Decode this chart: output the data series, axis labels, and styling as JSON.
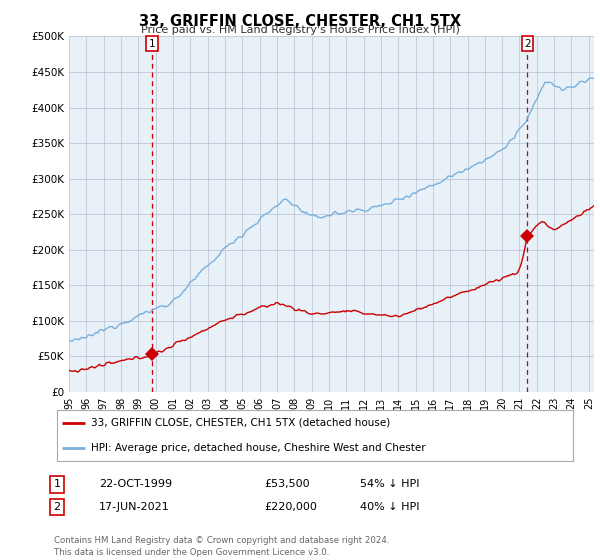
{
  "title": "33, GRIFFIN CLOSE, CHESTER, CH1 5TX",
  "subtitle": "Price paid vs. HM Land Registry's House Price Index (HPI)",
  "ylabel_ticks": [
    "£0",
    "£50K",
    "£100K",
    "£150K",
    "£200K",
    "£250K",
    "£300K",
    "£350K",
    "£400K",
    "£450K",
    "£500K"
  ],
  "ytick_values": [
    0,
    50000,
    100000,
    150000,
    200000,
    250000,
    300000,
    350000,
    400000,
    450000,
    500000
  ],
  "xlim_start": 1995.0,
  "xlim_end": 2025.3,
  "ylim": [
    0,
    500000
  ],
  "hpi_color": "#7ab0dc",
  "price_color": "#cc0000",
  "chart_bg": "#e8f0f8",
  "sale1_date": 1999.81,
  "sale1_price": 53500,
  "sale2_date": 2021.46,
  "sale2_price": 220000,
  "legend1": "33, GRIFFIN CLOSE, CHESTER, CH1 5TX (detached house)",
  "legend2": "HPI: Average price, detached house, Cheshire West and Chester",
  "table_row1_num": "1",
  "table_row1_date": "22-OCT-1999",
  "table_row1_price": "£53,500",
  "table_row1_hpi": "54% ↓ HPI",
  "table_row2_num": "2",
  "table_row2_date": "17-JUN-2021",
  "table_row2_price": "£220,000",
  "table_row2_hpi": "40% ↓ HPI",
  "footer": "Contains HM Land Registry data © Crown copyright and database right 2024.\nThis data is licensed under the Open Government Licence v3.0.",
  "background_color": "#ffffff",
  "grid_color": "#c0c8d8"
}
